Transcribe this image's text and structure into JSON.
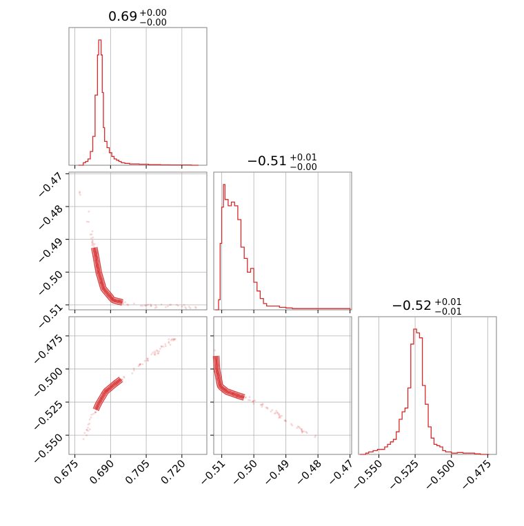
{
  "chart_data": [
    {
      "type": "histogram",
      "panel": "diag-0",
      "title": {
        "value": "0.69",
        "upper": "+0.00",
        "lower": "−0.00"
      },
      "bins_x": [
        0.6765,
        0.6785,
        0.6795,
        0.6805,
        0.6815,
        0.6825,
        0.6835,
        0.6845,
        0.685,
        0.686,
        0.6865,
        0.687,
        0.6875,
        0.6885,
        0.6895,
        0.6905,
        0.6915,
        0.6925,
        0.6935,
        0.6945,
        0.696,
        0.698,
        0.7,
        0.702,
        0.706,
        0.711,
        0.715,
        0.72,
        0.724,
        0.727
      ],
      "heights": [
        0.0,
        0.02,
        0.03,
        0.05,
        0.11,
        0.23,
        0.56,
        0.88,
        1.0,
        0.88,
        0.58,
        0.3,
        0.19,
        0.14,
        0.1,
        0.07,
        0.05,
        0.04,
        0.03,
        0.02,
        0.015,
        0.01,
        0.01,
        0.008,
        0.005,
        0.003,
        0.002,
        0.002,
        0.0
      ],
      "xlim": [
        0.6725,
        0.7305
      ]
    },
    {
      "type": "scatter-contour",
      "panel": "x0-vs-x1",
      "xlim": [
        0.6725,
        0.7305
      ],
      "ylim": [
        -0.5115,
        -0.4695
      ],
      "ridge": [
        [
          0.677,
          -0.475
        ],
        [
          0.6795,
          -0.48
        ],
        [
          0.681,
          -0.485
        ],
        [
          0.6825,
          -0.49
        ],
        [
          0.6838,
          -0.495
        ],
        [
          0.685,
          -0.5
        ],
        [
          0.687,
          -0.505
        ],
        [
          0.691,
          -0.5085
        ],
        [
          0.699,
          -0.51
        ],
        [
          0.715,
          -0.5105
        ],
        [
          0.726,
          -0.5107
        ]
      ]
    },
    {
      "type": "histogram",
      "panel": "diag-1",
      "title": {
        "value": "−0.51",
        "upper": "+0.01",
        "lower": "−0.00"
      },
      "bins_x": [
        -0.512,
        -0.511,
        -0.5105,
        -0.51,
        -0.5095,
        -0.509,
        -0.508,
        -0.507,
        -0.506,
        -0.505,
        -0.504,
        -0.503,
        -0.502,
        -0.501,
        -0.5,
        -0.499,
        -0.498,
        -0.497,
        -0.496,
        -0.494,
        -0.492,
        -0.49,
        -0.488,
        -0.485,
        -0.48,
        -0.475,
        -0.47
      ],
      "heights": [
        0.0,
        0.08,
        0.53,
        0.82,
        1.0,
        0.88,
        0.83,
        0.86,
        0.83,
        0.72,
        0.5,
        0.41,
        0.3,
        0.33,
        0.22,
        0.15,
        0.09,
        0.05,
        0.03,
        0.03,
        0.02,
        0.015,
        0.01,
        0.01,
        0.01,
        0.01
      ],
      "xlim": [
        -0.5125,
        -0.4695
      ]
    },
    {
      "type": "scatter-contour",
      "panel": "x0-vs-x2",
      "xlim": [
        0.6725,
        0.7305
      ],
      "ylim": [
        -0.5645,
        -0.4605
      ],
      "ridge": [
        [
          0.679,
          -0.553
        ],
        [
          0.682,
          -0.538
        ],
        [
          0.685,
          -0.526
        ],
        [
          0.688,
          -0.517
        ],
        [
          0.692,
          -0.511
        ],
        [
          0.698,
          -0.503
        ],
        [
          0.705,
          -0.493
        ],
        [
          0.712,
          -0.484
        ],
        [
          0.717,
          -0.476
        ]
      ]
    },
    {
      "type": "scatter-contour",
      "panel": "x1-vs-x2",
      "xlim": [
        -0.5125,
        -0.4695
      ],
      "ylim": [
        -0.5645,
        -0.4605
      ],
      "ridge": [
        [
          -0.512,
          -0.482
        ],
        [
          -0.5115,
          -0.5
        ],
        [
          -0.5105,
          -0.513
        ],
        [
          -0.5085,
          -0.517
        ],
        [
          -0.505,
          -0.52
        ],
        [
          -0.501,
          -0.523
        ],
        [
          -0.497,
          -0.528
        ],
        [
          -0.492,
          -0.535
        ],
        [
          -0.487,
          -0.543
        ],
        [
          -0.481,
          -0.551
        ]
      ]
    },
    {
      "type": "histogram",
      "panel": "diag-2",
      "title": {
        "value": "−0.52",
        "upper": "+0.01",
        "lower": "−0.01"
      },
      "bins_x": [
        -0.563,
        -0.559,
        -0.557,
        -0.554,
        -0.551,
        -0.548,
        -0.546,
        -0.544,
        -0.542,
        -0.54,
        -0.538,
        -0.536,
        -0.534,
        -0.532,
        -0.53,
        -0.528,
        -0.526,
        -0.524,
        -0.522,
        -0.52,
        -0.518,
        -0.516,
        -0.514,
        -0.512,
        -0.51,
        -0.508,
        -0.506,
        -0.504,
        -0.502,
        -0.5,
        -0.496,
        -0.492,
        -0.488,
        -0.484,
        -0.48,
        -0.474
      ],
      "heights": [
        0.0,
        0.01,
        0.02,
        0.03,
        0.04,
        0.04,
        0.06,
        0.08,
        0.1,
        0.12,
        0.18,
        0.28,
        0.34,
        0.37,
        0.53,
        0.88,
        1.0,
        0.97,
        0.93,
        0.55,
        0.4,
        0.22,
        0.13,
        0.08,
        0.07,
        0.06,
        0.03,
        0.02,
        0.02,
        0.01,
        0.015,
        0.01,
        0.01,
        0.005,
        0.0
      ],
      "xlim": [
        -0.564,
        -0.469
      ]
    }
  ],
  "axes": {
    "x0_ticks": [
      "0.675",
      "0.690",
      "0.705",
      "0.720"
    ],
    "x0_tick_values": [
      0.675,
      0.69,
      0.705,
      0.72
    ],
    "x1_ticks": [
      "−0.51",
      "−0.50",
      "−0.49",
      "−0.48",
      "−0.47"
    ],
    "x1_tick_values": [
      -0.51,
      -0.5,
      -0.49,
      -0.48,
      -0.47
    ],
    "x2_ticks": [
      "−0.550",
      "−0.525",
      "−0.500",
      "−0.475"
    ],
    "x2_tick_values": [
      -0.55,
      -0.525,
      -0.5,
      -0.475
    ],
    "row1_yticks": [
      "−0.47",
      "−0.48",
      "−0.49",
      "−0.50",
      "−0.51"
    ],
    "row1_ytick_values": [
      -0.47,
      -0.48,
      -0.49,
      -0.5,
      -0.51
    ],
    "row2_yticks": [
      "−0.475",
      "−0.500",
      "−0.525",
      "−0.550"
    ],
    "row2_ytick_values": [
      -0.475,
      -0.5,
      -0.525,
      -0.55
    ]
  },
  "colors": {
    "series": "#d62728",
    "frame": "#7f7f7f",
    "grid": "#b0b0b0"
  }
}
